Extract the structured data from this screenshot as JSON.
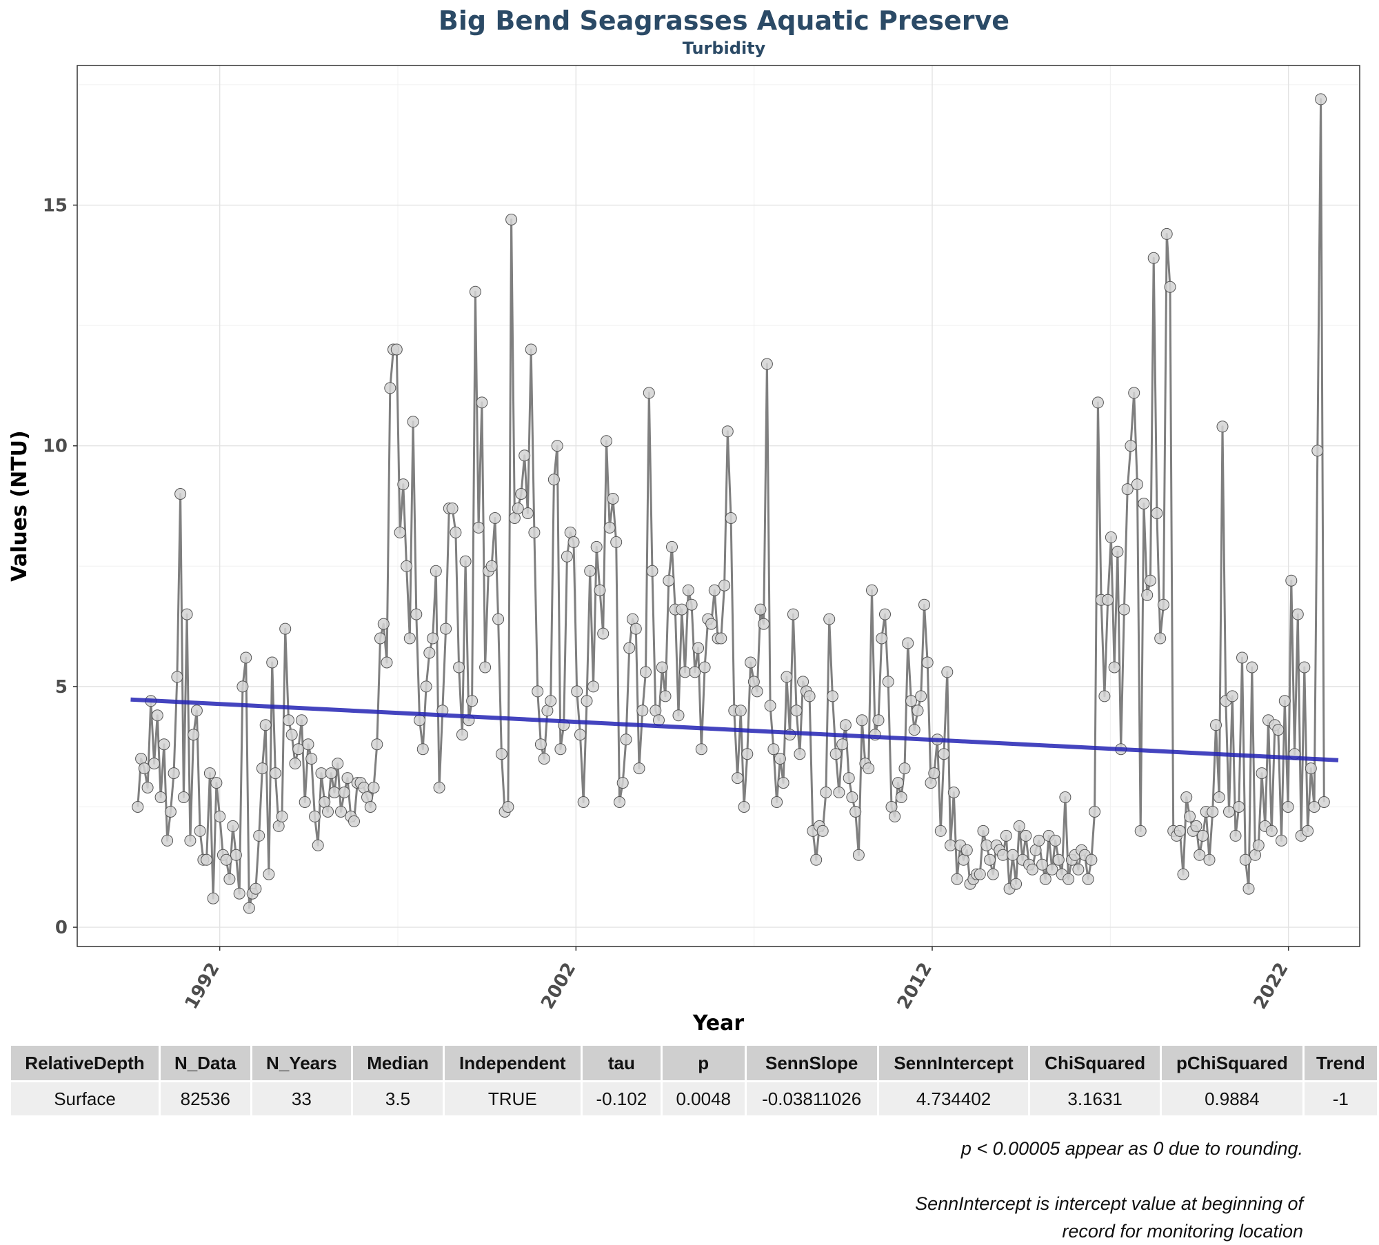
{
  "title": "Big Bend Seagrasses Aquatic Preserve",
  "subtitle": "Turbidity",
  "chart_data": {
    "type": "line",
    "xlabel": "Year",
    "ylabel": "Values (NTU)",
    "x_ticks": [
      1992,
      2002,
      2012,
      2022
    ],
    "y_ticks": [
      0,
      5,
      10,
      15
    ],
    "xlim": [
      1988,
      2024
    ],
    "ylim": [
      -0.4,
      17.9
    ],
    "grid": true,
    "colors": {
      "line": "#7f7f7f",
      "point_fill": "#d3d3d3",
      "trend": "#2323b4"
    },
    "series": [
      {
        "kind": "observations",
        "y": [
          2.5,
          3.5,
          3.3,
          2.9,
          4.7,
          3.4,
          4.4,
          2.7,
          3.8,
          1.8,
          2.4,
          3.2,
          5.2,
          9.0,
          2.7,
          6.5,
          1.8,
          4.0,
          4.5,
          2.0,
          1.4,
          1.4,
          3.2,
          0.6,
          3.0,
          2.3,
          1.5,
          1.4,
          1.0,
          2.1,
          1.5,
          0.7,
          5.0,
          5.6,
          0.4,
          0.7,
          0.8,
          1.9,
          3.3,
          4.2,
          1.1,
          5.5,
          3.2,
          2.1,
          2.3,
          6.2,
          4.3,
          4.0,
          3.4,
          3.7,
          4.3,
          2.6,
          3.8,
          3.5,
          2.3,
          1.7,
          3.2,
          2.6,
          2.4,
          3.2,
          2.8,
          3.4,
          2.4,
          2.8,
          3.1,
          2.3,
          2.2,
          3.0,
          3.0,
          2.9,
          2.7,
          2.5,
          2.9,
          3.8,
          6.0,
          6.3,
          5.5,
          11.2,
          12.0,
          12.0,
          8.2,
          9.2,
          7.5,
          6.0,
          10.5,
          6.5,
          4.3,
          3.7,
          5.0,
          5.7,
          6.0,
          7.4,
          2.9,
          4.5,
          6.2,
          8.7,
          8.7,
          8.2,
          5.4,
          4.0,
          7.6,
          4.3,
          4.7,
          13.2,
          8.3,
          10.9,
          5.4,
          7.4,
          7.5,
          8.5,
          6.4,
          3.6,
          2.4,
          2.5,
          14.7,
          8.5,
          8.7,
          9.0,
          9.8,
          8.6,
          12.0,
          8.2,
          4.9,
          3.8,
          3.5,
          4.5,
          4.7,
          9.3,
          10.0,
          3.7,
          4.2,
          7.7,
          8.2,
          8.0,
          4.9,
          4.0,
          2.6,
          4.7,
          7.4,
          5.0,
          7.9,
          7.0,
          6.1,
          10.1,
          8.3,
          8.9,
          8.0,
          2.6,
          3.0,
          3.9,
          5.8,
          6.4,
          6.2,
          3.3,
          4.5,
          5.3,
          11.1,
          7.4,
          4.5,
          4.3,
          5.4,
          4.8,
          7.2,
          7.9,
          6.6,
          4.4,
          6.6,
          5.3,
          7.0,
          6.7,
          5.3,
          5.8,
          3.7,
          5.4,
          6.4,
          6.3,
          7.0,
          6.0,
          6.0,
          7.1,
          10.3,
          8.5,
          4.5,
          3.1,
          4.5,
          2.5,
          3.6,
          5.5,
          5.1,
          4.9,
          6.6,
          6.3,
          11.7,
          4.6,
          3.7,
          2.6,
          3.5,
          3.0,
          5.2,
          4.0,
          6.5,
          4.5,
          3.6,
          5.1,
          4.9,
          4.8,
          2.0,
          1.4,
          2.1,
          2.0,
          2.8,
          6.4,
          4.8,
          3.6,
          2.8,
          3.8,
          4.2,
          3.1,
          2.7,
          2.4,
          1.5,
          4.3,
          3.4,
          3.3,
          7.0,
          4.0,
          4.3,
          6.0,
          6.5,
          5.1,
          2.5,
          2.3,
          3.0,
          2.7,
          3.3,
          5.9,
          4.7,
          4.1,
          4.5,
          4.8,
          6.7,
          5.5,
          3.0,
          3.2,
          3.9,
          2.0,
          3.6,
          5.3,
          1.7,
          2.8,
          1.0,
          1.7,
          1.4,
          1.6,
          0.9,
          1.0,
          1.1,
          1.1,
          2.0,
          1.7,
          1.4,
          1.1,
          1.7,
          1.6,
          1.5,
          1.9,
          0.8,
          1.5,
          0.9,
          2.1,
          1.4,
          1.9,
          1.3,
          1.2,
          1.6,
          1.8,
          1.3,
          1.0,
          1.9,
          1.2,
          1.8,
          1.4,
          1.1,
          2.7,
          1.0,
          1.4,
          1.5,
          1.2,
          1.6,
          1.5,
          1.0,
          1.4,
          2.4,
          10.9,
          6.8,
          4.8,
          6.8,
          8.1,
          5.4,
          7.8,
          3.7,
          6.6,
          9.1,
          10.0,
          11.1,
          9.2,
          2.0,
          8.8,
          6.9,
          7.2,
          13.9,
          8.6,
          6.0,
          6.7,
          14.4,
          13.3,
          2.0,
          1.9,
          2.0,
          1.1,
          2.7,
          2.3,
          2.0,
          2.1,
          1.5,
          1.9,
          2.4,
          1.4,
          2.4,
          4.2,
          2.7,
          10.4,
          4.7,
          2.4,
          4.8,
          1.9,
          2.5,
          5.6,
          1.4,
          0.8,
          5.4,
          1.5,
          1.7,
          3.2,
          2.1,
          4.3,
          2.0,
          4.2,
          4.1,
          1.8,
          4.7,
          2.5,
          7.2,
          3.6,
          6.5,
          1.9,
          5.4,
          2.0,
          3.3,
          2.5,
          9.9,
          17.2,
          2.6
        ]
      },
      {
        "kind": "trend",
        "name": "",
        "x": [
          1992,
          2024
        ],
        "y": [
          4.73,
          3.47
        ]
      }
    ]
  },
  "table": {
    "headers": [
      "RelativeDepth",
      "N_Data",
      "N_Years",
      "Median",
      "Independent",
      "tau",
      "p",
      "SennSlope",
      "SennIntercept",
      "ChiSquared",
      "pChiSquared",
      "Trend"
    ],
    "row": [
      "Surface",
      "82536",
      "33",
      "3.5",
      "TRUE",
      "-0.102",
      "0.0048",
      "-0.03811026",
      "4.734402",
      "3.1631",
      "0.9884",
      "-1"
    ]
  },
  "notes": {
    "line1": "p < 0.00005 appear as 0 due to rounding.",
    "line2": "SennIntercept is intercept value at beginning of",
    "line3": "record for monitoring location"
  }
}
